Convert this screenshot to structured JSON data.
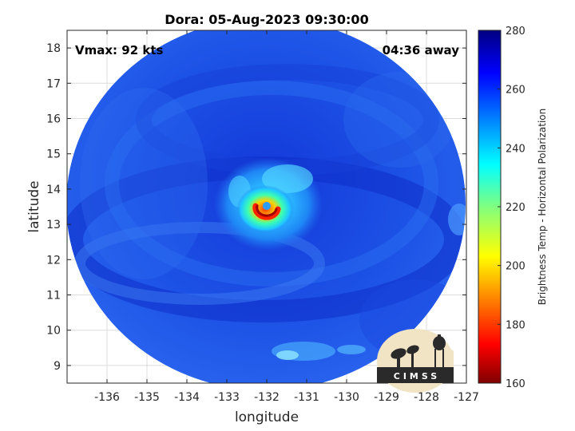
{
  "title": "Dora: 05-Aug-2023 09:30:00",
  "annotations": {
    "vmax": "Vmax: 92 kts",
    "away": "04:36 away"
  },
  "map": {
    "xlabel": "longitude",
    "ylabel": "latitude",
    "xlim": [
      -137,
      -127
    ],
    "ylim": [
      8.5,
      18.5
    ],
    "x_ticks": [
      -136,
      -135,
      -134,
      -133,
      -132,
      -131,
      -130,
      -129,
      -128,
      -127
    ],
    "y_ticks": [
      9,
      10,
      11,
      12,
      13,
      14,
      15,
      16,
      17,
      18
    ],
    "x_tick_labels": [
      "-136",
      "-135",
      "-134",
      "-133",
      "-132",
      "-131",
      "-130",
      "-129",
      "-128",
      "-127"
    ],
    "y_tick_labels": [
      "9",
      "10",
      "11",
      "12",
      "13",
      "14",
      "15",
      "16",
      "17",
      "18"
    ],
    "grid": true,
    "storm_center": {
      "lon": -131.8,
      "lat": 13.3
    },
    "swath_center": {
      "lon": -132.0,
      "lat": 13.5
    }
  },
  "colorbar": {
    "label": "Brightness Temp - Horizontal Polarization",
    "range": [
      160,
      280
    ],
    "ticks": [
      160,
      180,
      200,
      220,
      240,
      260,
      280
    ],
    "tick_labels": [
      "160",
      "180",
      "200",
      "220",
      "240",
      "260",
      "280"
    ],
    "colormap": "jet-reversed"
  },
  "logo": {
    "text": "CIMSS"
  }
}
